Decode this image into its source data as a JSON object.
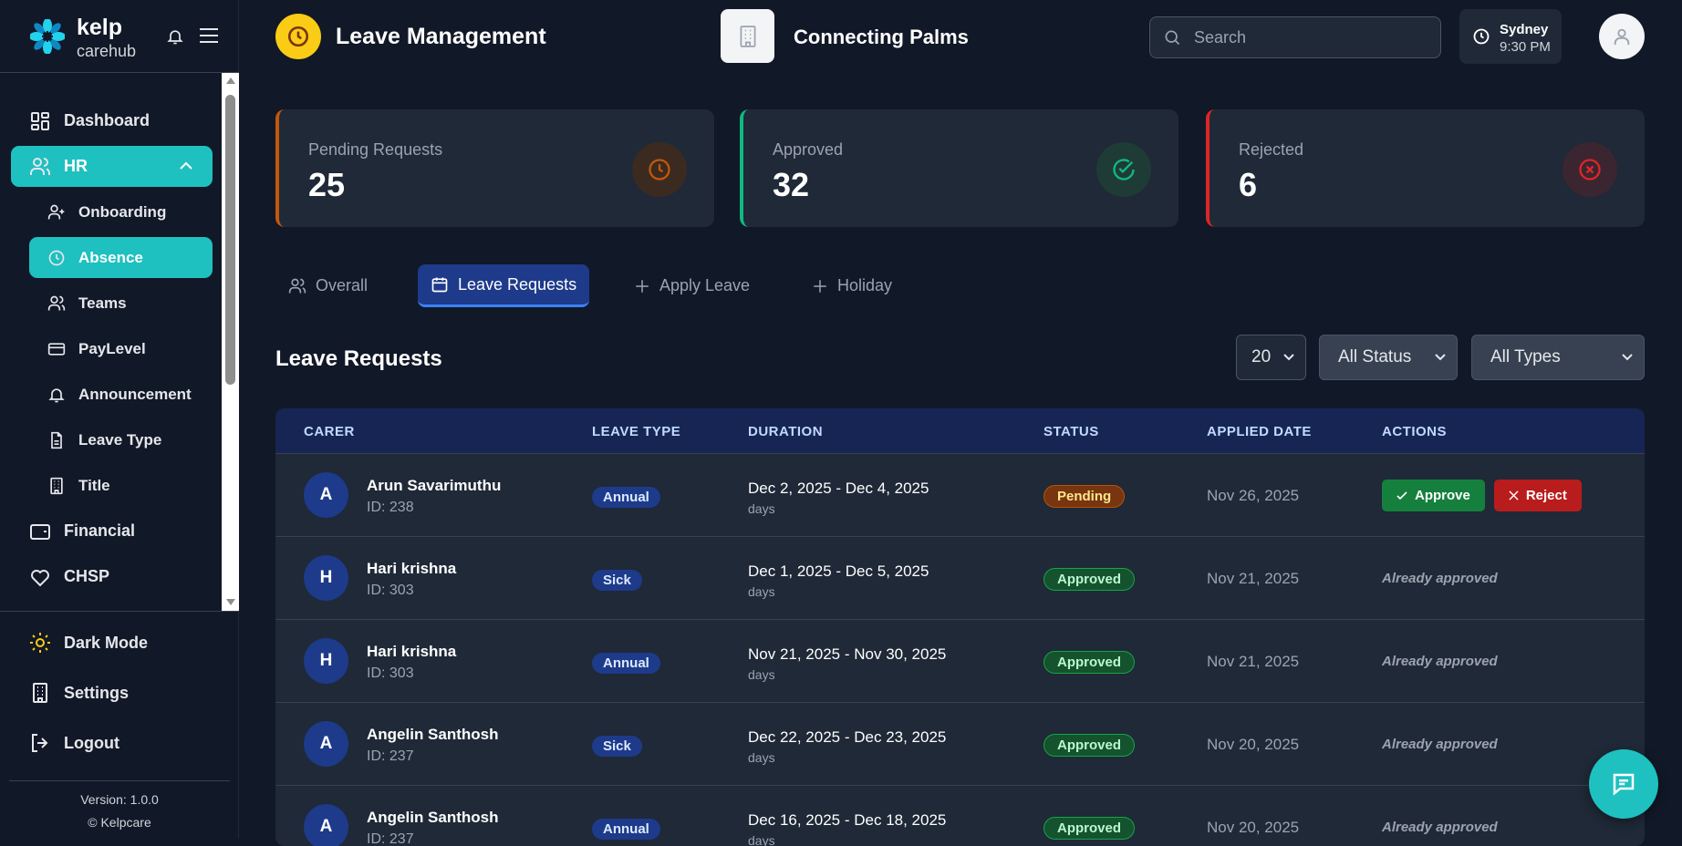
{
  "brand": {
    "name": "kelp",
    "sub": "carehub"
  },
  "sidebar": {
    "items": [
      {
        "label": "Dashboard",
        "icon": "dashboard-icon"
      },
      {
        "label": "HR",
        "icon": "users-icon"
      },
      {
        "label": "Onboarding",
        "icon": "user-plus-icon"
      },
      {
        "label": "Absence",
        "icon": "clock-icon"
      },
      {
        "label": "Teams",
        "icon": "users-icon"
      },
      {
        "label": "PayLevel",
        "icon": "credit-card-icon"
      },
      {
        "label": "Announcement",
        "icon": "bell-icon"
      },
      {
        "label": "Leave Type",
        "icon": "file-icon"
      },
      {
        "label": "Title",
        "icon": "building-icon"
      },
      {
        "label": "Financial",
        "icon": "wallet-icon"
      },
      {
        "label": "CHSP",
        "icon": "heart-icon"
      }
    ],
    "dark_mode": "Dark Mode",
    "settings": "Settings",
    "logout": "Logout",
    "version": "Version: 1.0.0",
    "copyright": "© Kelpcare"
  },
  "header": {
    "title": "Leave Management",
    "org": "Connecting Palms",
    "search_placeholder": "Search",
    "tz_city": "Sydney",
    "tz_time": "9:30 PM"
  },
  "stats": [
    {
      "label": "Pending Requests",
      "value": "25",
      "color": "#c2570c"
    },
    {
      "label": "Approved",
      "value": "32",
      "color": "#10b981"
    },
    {
      "label": "Rejected",
      "value": "6",
      "color": "#dc2626"
    }
  ],
  "tabs": [
    {
      "label": "Overall"
    },
    {
      "label": "Leave Requests",
      "active": true
    },
    {
      "label": "Apply Leave"
    },
    {
      "label": "Holiday"
    }
  ],
  "section": {
    "title": "Leave Requests",
    "page_size": "20",
    "status_filter": "All Status",
    "type_filter": "All Types"
  },
  "table": {
    "columns": [
      "CARER",
      "LEAVE TYPE",
      "DURATION",
      "STATUS",
      "APPLIED DATE",
      "ACTIONS"
    ],
    "rows": [
      {
        "initial": "A",
        "name": "Arun Savarimuthu",
        "id": "ID: 238",
        "type": "Annual",
        "duration": "Dec 2, 2025 - Dec 4, 2025",
        "days": "days",
        "status": "Pending",
        "applied": "Nov 26, 2025",
        "approve": "Approve",
        "reject": "Reject"
      },
      {
        "initial": "H",
        "name": "Hari krishna",
        "id": "ID: 303",
        "type": "Sick",
        "duration": "Dec 1, 2025 - Dec 5, 2025",
        "days": "days",
        "status": "Approved",
        "applied": "Nov 21, 2025",
        "note": "Already approved"
      },
      {
        "initial": "H",
        "name": "Hari krishna",
        "id": "ID: 303",
        "type": "Annual",
        "duration": "Nov 21, 2025 - Nov 30, 2025",
        "days": "days",
        "status": "Approved",
        "applied": "Nov 21, 2025",
        "note": "Already approved"
      },
      {
        "initial": "A",
        "name": "Angelin Santhosh",
        "id": "ID: 237",
        "type": "Sick",
        "duration": "Dec 22, 2025 - Dec 23, 2025",
        "days": "days",
        "status": "Approved",
        "applied": "Nov 20, 2025",
        "note": "Already approved"
      },
      {
        "initial": "A",
        "name": "Angelin Santhosh",
        "id": "ID: 237",
        "type": "Annual",
        "duration": "Dec 16, 2025 - Dec 18, 2025",
        "days": "days",
        "status": "Approved",
        "applied": "Nov 20, 2025",
        "note": "Already approved"
      }
    ]
  },
  "colors": {
    "accent": "#1fc0c0",
    "header_icon": "#facc15",
    "table_header": "#172554"
  }
}
